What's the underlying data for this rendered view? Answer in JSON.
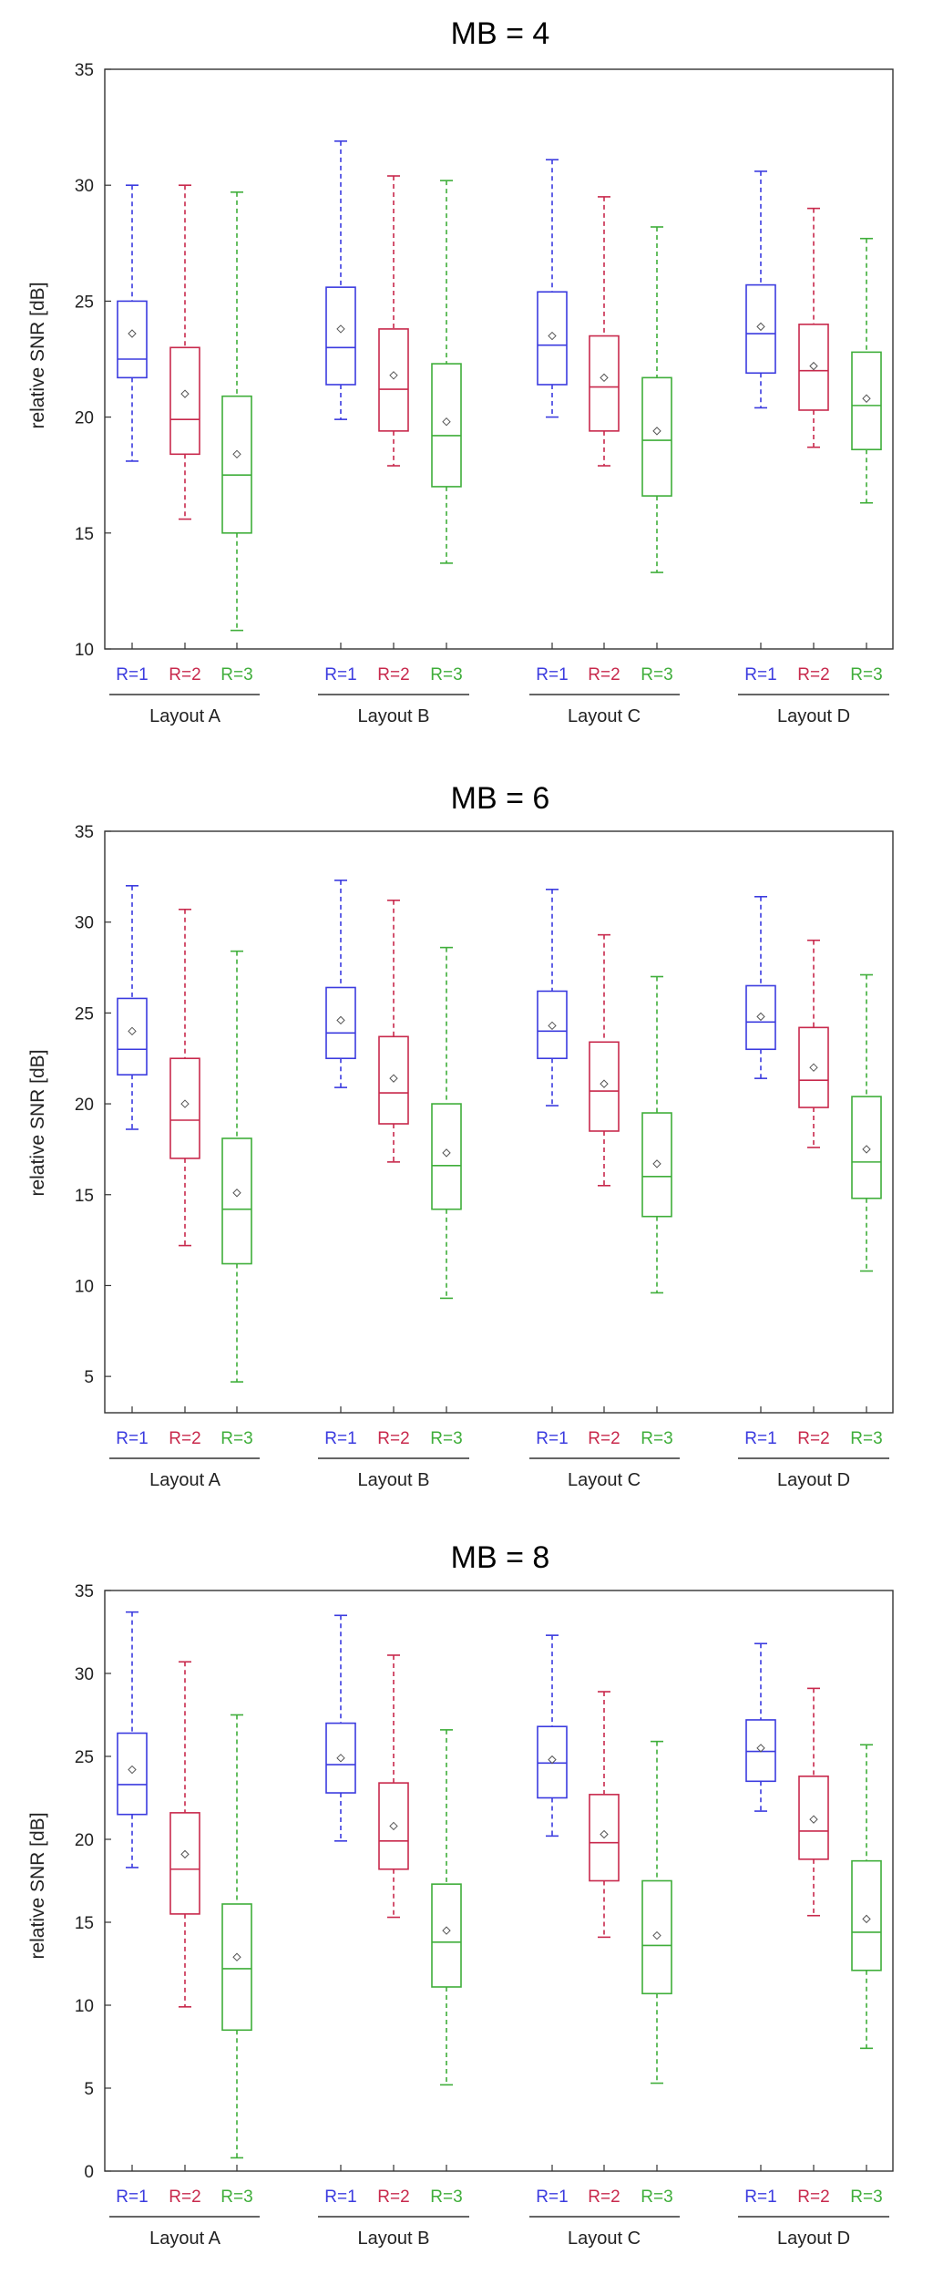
{
  "colors": {
    "R=1": "#3b3bdf",
    "R=2": "#c8294c",
    "R=3": "#3fae3a",
    "axis": "#333333"
  },
  "chart_data": [
    {
      "type": "box",
      "title": "MB = 4",
      "ylabel": "relative SNR [dB]",
      "ylim": [
        10,
        35
      ],
      "yticks": [
        10,
        15,
        20,
        25,
        30,
        35
      ],
      "groups": [
        "Layout A",
        "Layout B",
        "Layout C",
        "Layout D"
      ],
      "series_labels": [
        "R=1",
        "R=2",
        "R=3"
      ],
      "boxes": [
        [
          {
            "min": 18.1,
            "q1": 21.7,
            "median": 22.5,
            "q3": 25.0,
            "max": 30.0,
            "mean": 23.6
          },
          {
            "min": 15.6,
            "q1": 18.4,
            "median": 19.9,
            "q3": 23.0,
            "max": 30.0,
            "mean": 21.0
          },
          {
            "min": 10.8,
            "q1": 15.0,
            "median": 17.5,
            "q3": 20.9,
            "max": 29.7,
            "mean": 18.4
          }
        ],
        [
          {
            "min": 19.9,
            "q1": 21.4,
            "median": 23.0,
            "q3": 25.6,
            "max": 31.9,
            "mean": 23.8
          },
          {
            "min": 17.9,
            "q1": 19.4,
            "median": 21.2,
            "q3": 23.8,
            "max": 30.4,
            "mean": 21.8
          },
          {
            "min": 13.7,
            "q1": 17.0,
            "median": 19.2,
            "q3": 22.3,
            "max": 30.2,
            "mean": 19.8
          }
        ],
        [
          {
            "min": 20.0,
            "q1": 21.4,
            "median": 23.1,
            "q3": 25.4,
            "max": 31.1,
            "mean": 23.5
          },
          {
            "min": 17.9,
            "q1": 19.4,
            "median": 21.3,
            "q3": 23.5,
            "max": 29.5,
            "mean": 21.7
          },
          {
            "min": 13.3,
            "q1": 16.6,
            "median": 19.0,
            "q3": 21.7,
            "max": 28.2,
            "mean": 19.4
          }
        ],
        [
          {
            "min": 20.4,
            "q1": 21.9,
            "median": 23.6,
            "q3": 25.7,
            "max": 30.6,
            "mean": 23.9
          },
          {
            "min": 18.7,
            "q1": 20.3,
            "median": 22.0,
            "q3": 24.0,
            "max": 29.0,
            "mean": 22.2
          },
          {
            "min": 16.3,
            "q1": 18.6,
            "median": 20.5,
            "q3": 22.8,
            "max": 27.7,
            "mean": 20.8
          }
        ]
      ]
    },
    {
      "type": "box",
      "title": "MB = 6",
      "ylabel": "relative SNR [dB]",
      "ylim": [
        3,
        35
      ],
      "yticks": [
        5,
        10,
        15,
        20,
        25,
        30,
        35
      ],
      "groups": [
        "Layout A",
        "Layout B",
        "Layout C",
        "Layout D"
      ],
      "series_labels": [
        "R=1",
        "R=2",
        "R=3"
      ],
      "boxes": [
        [
          {
            "min": 18.6,
            "q1": 21.6,
            "median": 23.0,
            "q3": 25.8,
            "max": 32.0,
            "mean": 24.0
          },
          {
            "min": 12.2,
            "q1": 17.0,
            "median": 19.1,
            "q3": 22.5,
            "max": 30.7,
            "mean": 20.0
          },
          {
            "min": 4.7,
            "q1": 11.2,
            "median": 14.2,
            "q3": 18.1,
            "max": 28.4,
            "mean": 15.1
          }
        ],
        [
          {
            "min": 20.9,
            "q1": 22.5,
            "median": 23.9,
            "q3": 26.4,
            "max": 32.3,
            "mean": 24.6
          },
          {
            "min": 16.8,
            "q1": 18.9,
            "median": 20.6,
            "q3": 23.7,
            "max": 31.2,
            "mean": 21.4
          },
          {
            "min": 9.3,
            "q1": 14.2,
            "median": 16.6,
            "q3": 20.0,
            "max": 28.6,
            "mean": 17.3
          }
        ],
        [
          {
            "min": 19.9,
            "q1": 22.5,
            "median": 24.0,
            "q3": 26.2,
            "max": 31.8,
            "mean": 24.3
          },
          {
            "min": 15.5,
            "q1": 18.5,
            "median": 20.7,
            "q3": 23.4,
            "max": 29.3,
            "mean": 21.1
          },
          {
            "min": 9.6,
            "q1": 13.8,
            "median": 16.0,
            "q3": 19.5,
            "max": 27.0,
            "mean": 16.7
          }
        ],
        [
          {
            "min": 21.4,
            "q1": 23.0,
            "median": 24.5,
            "q3": 26.5,
            "max": 31.4,
            "mean": 24.8
          },
          {
            "min": 17.6,
            "q1": 19.8,
            "median": 21.3,
            "q3": 24.2,
            "max": 29.0,
            "mean": 22.0
          },
          {
            "min": 10.8,
            "q1": 14.8,
            "median": 16.8,
            "q3": 20.4,
            "max": 27.1,
            "mean": 17.5
          }
        ]
      ]
    },
    {
      "type": "box",
      "title": "MB = 8",
      "ylabel": "relative SNR [dB]",
      "ylim": [
        0,
        35
      ],
      "yticks": [
        0,
        5,
        10,
        15,
        20,
        25,
        30,
        35
      ],
      "groups": [
        "Layout A",
        "Layout B",
        "Layout C",
        "Layout D"
      ],
      "series_labels": [
        "R=1",
        "R=2",
        "R=3"
      ],
      "boxes": [
        [
          {
            "min": 18.3,
            "q1": 21.5,
            "median": 23.3,
            "q3": 26.4,
            "max": 33.7,
            "mean": 24.2
          },
          {
            "min": 9.9,
            "q1": 15.5,
            "median": 18.2,
            "q3": 21.6,
            "max": 30.7,
            "mean": 19.1
          },
          {
            "min": 0.8,
            "q1": 8.5,
            "median": 12.2,
            "q3": 16.1,
            "max": 27.5,
            "mean": 12.9
          }
        ],
        [
          {
            "min": 19.9,
            "q1": 22.8,
            "median": 24.5,
            "q3": 27.0,
            "max": 33.5,
            "mean": 24.9
          },
          {
            "min": 15.3,
            "q1": 18.2,
            "median": 19.9,
            "q3": 23.4,
            "max": 31.1,
            "mean": 20.8
          },
          {
            "min": 5.2,
            "q1": 11.1,
            "median": 13.8,
            "q3": 17.3,
            "max": 26.6,
            "mean": 14.5
          }
        ],
        [
          {
            "min": 20.2,
            "q1": 22.5,
            "median": 24.6,
            "q3": 26.8,
            "max": 32.3,
            "mean": 24.8
          },
          {
            "min": 14.1,
            "q1": 17.5,
            "median": 19.8,
            "q3": 22.7,
            "max": 28.9,
            "mean": 20.3
          },
          {
            "min": 5.3,
            "q1": 10.7,
            "median": 13.6,
            "q3": 17.5,
            "max": 25.9,
            "mean": 14.2
          }
        ],
        [
          {
            "min": 21.7,
            "q1": 23.5,
            "median": 25.3,
            "q3": 27.2,
            "max": 31.8,
            "mean": 25.5
          },
          {
            "min": 15.4,
            "q1": 18.8,
            "median": 20.5,
            "q3": 23.8,
            "max": 29.1,
            "mean": 21.2
          },
          {
            "min": 7.4,
            "q1": 12.1,
            "median": 14.4,
            "q3": 18.7,
            "max": 25.7,
            "mean": 15.2
          }
        ]
      ]
    }
  ]
}
